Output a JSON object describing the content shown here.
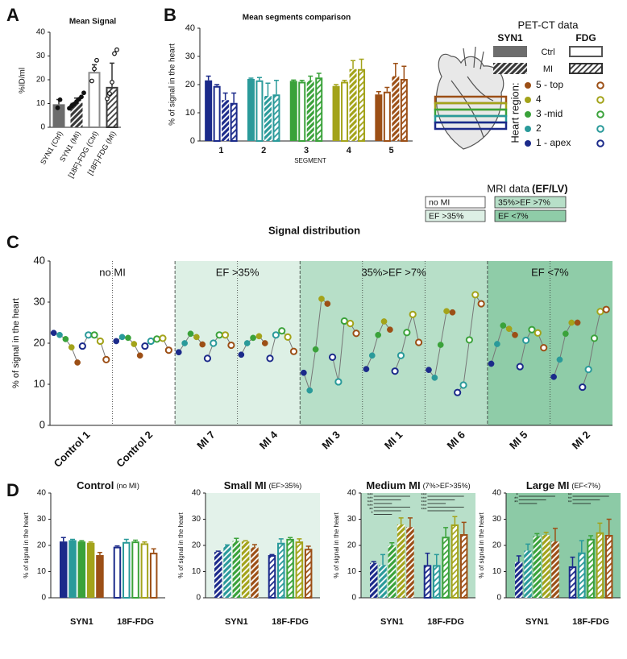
{
  "chart_data": [
    {
      "panel": "A",
      "type": "bar",
      "title": "Mean Signal",
      "y_label": "%ID/ml",
      "categories": [
        "SYN1 (Ctrl)",
        "SYN1 (MI)",
        "[18F]-FDG (Ctrl)",
        "[18F]-FDG (MI)"
      ],
      "values": [
        9.7,
        10.3,
        23.3,
        17
      ],
      "errors": [
        2,
        2,
        3,
        10
      ],
      "styles": [
        "solid",
        "hatched",
        "open",
        "hatched-open"
      ],
      "colors": [
        "#6d6d6d",
        "#3a3a3a",
        "#8a8a8a",
        "#3a3a3a"
      ],
      "points": [
        [
          8.2,
          11.6
        ],
        [
          8,
          9,
          9.8,
          10.8,
          11.8,
          12.8,
          14.5
        ],
        [
          19.5,
          24.6,
          28.2
        ],
        [
          12,
          14.2,
          19,
          31,
          32.6
        ]
      ],
      "ylim": [
        0,
        40
      ],
      "yticks": [
        0,
        10,
        20,
        30,
        40
      ]
    },
    {
      "panel": "B",
      "type": "grouped_bar",
      "title": "Mean segments comparison",
      "y_label": "% of signal in the heart",
      "x_label": "SEGMENT",
      "categories": [
        "1",
        "2",
        "3",
        "4",
        "5"
      ],
      "colors": [
        "#1b2a8a",
        "#2a9a9a",
        "#3aa23a",
        "#a3a31a",
        "#9c4f16"
      ],
      "series": [
        {
          "style": "solid",
          "values": [
            21.5,
            22,
            21.3,
            19.5,
            16.5
          ],
          "errors": [
            1.5,
            0.3,
            0.3,
            0.5,
            1
          ]
        },
        {
          "style": "open",
          "values": [
            19.5,
            21.5,
            21,
            21,
            17.5
          ],
          "errors": [
            0.5,
            1,
            0.5,
            0.5,
            1.5
          ]
        },
        {
          "style": "hatched",
          "values": [
            14.5,
            16,
            21.5,
            25.5,
            23
          ],
          "errors": [
            2.5,
            4.5,
            1.5,
            3,
            4.5
          ]
        },
        {
          "style": "hatched-open",
          "values": [
            13.5,
            16.5,
            22.5,
            25.5,
            22
          ],
          "errors": [
            3.5,
            5,
            1.5,
            3.5,
            4.5
          ]
        }
      ],
      "ylim": [
        0,
        40
      ],
      "yticks": [
        0,
        10,
        20,
        30,
        40
      ]
    },
    {
      "panel": "C",
      "type": "dot_line",
      "title": "Signal distribution",
      "y_label": "% of signal in the heart",
      "colors": [
        "#1b2a8a",
        "#2a9a9a",
        "#3aa23a",
        "#a3a31a",
        "#9c4f16"
      ],
      "line_color": "#777777",
      "regions": [
        {
          "label": "no MI",
          "color": "#ffffff",
          "subjects": [
            {
              "name": "Control 1",
              "syn1": [
                22.5,
                22,
                21,
                19,
                15.3
              ],
              "fdg": [
                19.3,
                22,
                22,
                20.5,
                16
              ]
            },
            {
              "name": "Control 2",
              "syn1": [
                20.5,
                21.5,
                21.3,
                19.8,
                17
              ],
              "fdg": [
                19.3,
                20.5,
                21,
                21.2,
                18.3
              ]
            }
          ]
        },
        {
          "label": "EF >35%",
          "color": "#ddf0e5",
          "subjects": [
            {
              "name": "MI 7",
              "syn1": [
                17.8,
                20,
                22.3,
                21.5,
                19.7
              ],
              "fdg": [
                16.3,
                20,
                22,
                22,
                19.5
              ]
            },
            {
              "name": "MI 4",
              "syn1": [
                17.2,
                20,
                21.3,
                21.7,
                20
              ],
              "fdg": [
                16.3,
                22,
                23,
                21.5,
                18
              ]
            }
          ]
        },
        {
          "label": "35%>EF >7%",
          "color": "#b7dfc8",
          "subjects": [
            {
              "name": "MI 3",
              "syn1": [
                12.8,
                8.5,
                18.5,
                30.8,
                29.6
              ],
              "fdg": [
                16.6,
                10.6,
                25.4,
                24.8,
                22.4
              ]
            },
            {
              "name": "MI 1",
              "syn1": [
                13.7,
                17,
                22,
                25.3,
                23.3
              ],
              "fdg": [
                13.2,
                17,
                22.6,
                27,
                20.2
              ]
            },
            {
              "name": "MI 6",
              "syn1": [
                13.5,
                11.6,
                19.6,
                27.8,
                27.5
              ],
              "fdg": [
                8,
                9.8,
                20.8,
                31.8,
                29.6
              ]
            }
          ]
        },
        {
          "label": "EF <7%",
          "color": "#8fcca8",
          "subjects": [
            {
              "name": "MI 5",
              "syn1": [
                15,
                19.8,
                24.3,
                23.5,
                22
              ],
              "fdg": [
                14.3,
                20.7,
                23.3,
                22.5,
                18.9
              ]
            },
            {
              "name": "MI 2",
              "syn1": [
                11.8,
                16,
                22.3,
                25,
                25
              ],
              "fdg": [
                9.3,
                13.6,
                21.2,
                27.7,
                28.2
              ]
            }
          ]
        }
      ],
      "ylim": [
        0,
        40
      ],
      "yticks": [
        0,
        10,
        20,
        30,
        40
      ]
    },
    {
      "panel": "D",
      "type": "grouped_bar",
      "title": "Control",
      "subtitle": "(no MI)",
      "y_label": "% of signal in the heart",
      "background": "#ffffff",
      "categories": [
        "SYN1",
        "18F-FDG"
      ],
      "styles": [
        "solid",
        "open"
      ],
      "colors": [
        "#1b2a8a",
        "#2a9a9a",
        "#3aa23a",
        "#a3a31a",
        "#9c4f16"
      ],
      "values": [
        [
          21.5,
          22,
          21.5,
          21,
          16.3
        ],
        [
          19.5,
          21.3,
          21.5,
          20.8,
          17.2
        ]
      ],
      "errors": [
        [
          1.5,
          0.3,
          0.3,
          0.3,
          1
        ],
        [
          0.3,
          1,
          0.5,
          0.5,
          1.5
        ]
      ],
      "significance": [
        [],
        []
      ],
      "ylim": [
        0,
        40
      ],
      "yticks": [
        0,
        10,
        20,
        30,
        40
      ]
    },
    {
      "type": "grouped_bar",
      "title": "Small MI",
      "subtitle": "(EF>35%)",
      "y_label": "% of signal in the heart",
      "background": "#e3f2ea",
      "categories": [
        "SYN1",
        "18F-FDG"
      ],
      "styles": [
        "hatched",
        "hatched-open"
      ],
      "colors": [
        "#1b2a8a",
        "#2a9a9a",
        "#3aa23a",
        "#a3a31a",
        "#9c4f16"
      ],
      "values": [
        [
          17.5,
          20,
          21.7,
          21.5,
          19.3
        ],
        [
          16.3,
          21,
          22.5,
          21.5,
          18.7
        ]
      ],
      "errors": [
        [
          0.3,
          0.2,
          1,
          0.3,
          1
        ],
        [
          0.2,
          1.5,
          0.5,
          1,
          1
        ]
      ],
      "significance": [
        [],
        []
      ],
      "ylim": [
        0,
        40
      ],
      "yticks": [
        0,
        10,
        20,
        30,
        40
      ]
    },
    {
      "type": "grouped_bar",
      "title": "Medium MI",
      "subtitle": "(7%>EF>35%)",
      "y_label": "% of signal in the heart",
      "background": "#b8dfc9",
      "categories": [
        "SYN1",
        "18F-FDG"
      ],
      "styles": [
        "hatched",
        "hatched-open"
      ],
      "colors": [
        "#1b2a8a",
        "#2a9a9a",
        "#3aa23a",
        "#a3a31a",
        "#9c4f16"
      ],
      "values": [
        [
          13.3,
          12.5,
          20,
          28,
          27
        ],
        [
          12.5,
          12.5,
          23.3,
          28,
          24.3
        ]
      ],
      "errors": [
        [
          0.5,
          4,
          1,
          2.5,
          3.5
        ],
        [
          4.5,
          4,
          3.5,
          3,
          4.5
        ]
      ],
      "significance": [
        [
          "***",
          "***",
          "***",
          "***",
          "**",
          "*"
        ],
        [
          "***",
          "***",
          "***",
          "***",
          "***"
        ]
      ],
      "ylim": [
        0,
        40
      ],
      "yticks": [
        0,
        10,
        20,
        30,
        40
      ]
    },
    {
      "type": "grouped_bar",
      "title": "Large MI",
      "subtitle": "(EF<7%)",
      "y_label": "% of signal in the heart",
      "background": "#8ccaa6",
      "categories": [
        "SYN1",
        "18F-FDG"
      ],
      "styles": [
        "hatched",
        "hatched-open"
      ],
      "colors": [
        "#1b2a8a",
        "#2a9a9a",
        "#3aa23a",
        "#a3a31a",
        "#9c4f16"
      ],
      "values": [
        [
          13.7,
          18,
          23.5,
          24,
          21.5
        ],
        [
          12,
          17.3,
          22.5,
          25,
          24
        ]
      ],
      "errors": [
        [
          2.3,
          2.5,
          1,
          1,
          5
        ],
        [
          3.5,
          4.5,
          1.2,
          3.5,
          6
        ]
      ],
      "significance": [
        [
          "*",
          "**",
          "**"
        ],
        [
          "**",
          "**",
          "**"
        ]
      ],
      "ylim": [
        0,
        40
      ],
      "yticks": [
        0,
        10,
        20,
        30,
        40
      ]
    }
  ],
  "legend": {
    "title": "PET-CT data",
    "columns": [
      "SYN1",
      "FDG"
    ],
    "rows": [
      "Ctrl",
      "MI"
    ],
    "region_title": "Heart region:",
    "regions": [
      "5 - top",
      "4",
      "3 -mid",
      "2",
      "1 - apex"
    ],
    "region_colors": [
      "#9c4f16",
      "#a3a31a",
      "#3aa23a",
      "#2a9a9a",
      "#1b2a8a"
    ]
  },
  "mri_legend": {
    "title": "MRI data",
    "subtitle": "(EF/LV)",
    "items": [
      {
        "label": "no MI",
        "color": "#ffffff"
      },
      {
        "label": "EF >35%",
        "color": "#ddf0e5"
      },
      {
        "label": "35%>EF >7%",
        "color": "#b7dfc8"
      },
      {
        "label": "EF <7%",
        "color": "#8fcca8"
      }
    ]
  }
}
